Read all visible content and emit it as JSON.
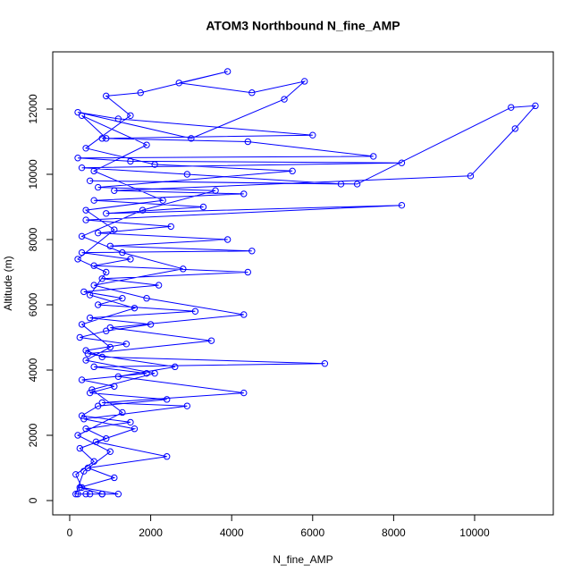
{
  "chart_data": {
    "type": "line",
    "title": "ATOM3 Northbound N_fine_AMP",
    "x_label": "N_fine_AMP",
    "y_label": "Altitude (m)",
    "color": "#0000ff",
    "markers": "open-circle",
    "x": [
      200,
      400,
      800,
      1200,
      300,
      150,
      600,
      250,
      900,
      400,
      1500,
      300,
      700,
      2400,
      500,
      1100,
      300,
      1900,
      600,
      6300,
      800,
      400,
      1400,
      250,
      900,
      2000,
      500,
      3100,
      700,
      1300,
      350,
      2200,
      800,
      4400,
      600,
      1500,
      300,
      4500,
      1000,
      3900,
      700,
      2500,
      400,
      8200,
      900,
      3300,
      600,
      4300,
      1100,
      9900,
      11000,
      11500,
      10900,
      7100,
      500,
      6700,
      2900,
      300,
      8200,
      1500,
      200,
      7500,
      4400,
      800,
      6000,
      1200,
      200,
      3000,
      5300,
      5800,
      4500,
      2700,
      3900,
      1750,
      900,
      1500,
      400,
      2100,
      5500,
      700,
      3600,
      1800,
      300,
      1300,
      2800,
      600,
      1900,
      4300,
      1000,
      3500,
      450,
      2600,
      1200,
      4300,
      800,
      2900,
      350,
      1600,
      650,
      2400,
      450,
      1100,
      250,
      800,
      500,
      150,
      350,
      1000,
      200,
      1300,
      550,
      2100,
      400,
      1000,
      300,
      1600,
      500,
      900,
      200,
      1100,
      400,
      2300,
      600,
      1900,
      300,
      900
    ],
    "values": [
      200,
      200,
      200,
      200,
      400,
      800,
      1200,
      1600,
      1900,
      2200,
      2400,
      2600,
      2900,
      3100,
      3300,
      3500,
      3700,
      3900,
      4100,
      4200,
      4400,
      4600,
      4800,
      5000,
      5200,
      5400,
      5600,
      5800,
      6000,
      6200,
      6400,
      6600,
      6800,
      7000,
      7200,
      7400,
      7600,
      7650,
      7800,
      8000,
      8200,
      8400,
      8600,
      9050,
      8800,
      9000,
      9200,
      9400,
      9500,
      9950,
      11400,
      12100,
      12050,
      9700,
      9800,
      9700,
      10000,
      10200,
      10350,
      10400,
      10500,
      10550,
      11000,
      11100,
      11200,
      11700,
      11900,
      11100,
      12300,
      12850,
      12500,
      12800,
      13150,
      12500,
      12400,
      11800,
      10800,
      10300,
      10100,
      9600,
      9500,
      8900,
      8100,
      7600,
      7100,
      6600,
      6200,
      5700,
      5300,
      4900,
      4500,
      4100,
      3800,
      3300,
      3000,
      2900,
      2500,
      2200,
      1800,
      1350,
      1000,
      700,
      400,
      200,
      200,
      200,
      900,
      1500,
      2000,
      2700,
      3400,
      3900,
      4300,
      4700,
      5400,
      5900,
      6300,
      7000,
      7400,
      8300,
      8900,
      9200,
      10100,
      10900,
      11800,
      11100
    ],
    "xlim": [
      -419,
      11943
    ],
    "ylim": [
      -438,
      13753
    ],
    "xticks": [
      0,
      2000,
      4000,
      6000,
      8000,
      10000
    ],
    "yticks": [
      0,
      2000,
      4000,
      6000,
      8000,
      10000,
      12000
    ]
  }
}
